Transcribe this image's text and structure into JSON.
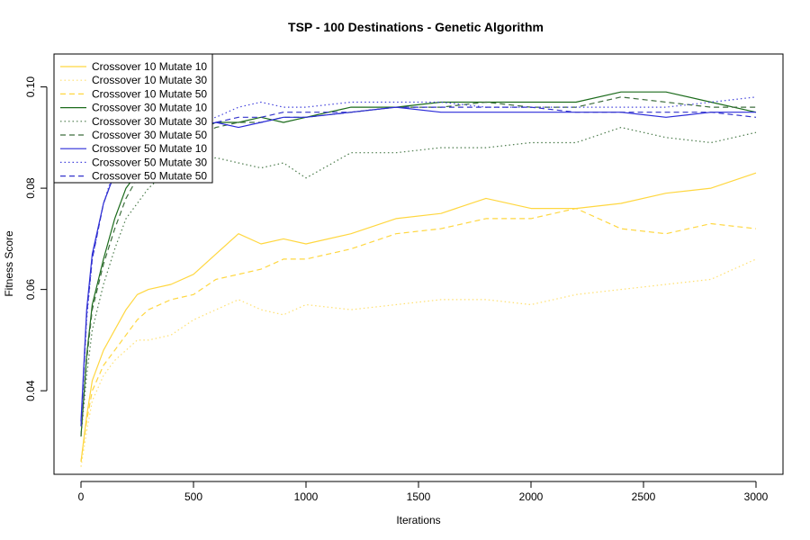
{
  "chart_data": {
    "type": "line",
    "title": "TSP - 100 Destinations  - Genetic Algorithm",
    "xlabel": "Iterations",
    "ylabel": "Fitness Score",
    "xlim": [
      -120,
      3120
    ],
    "ylim": [
      0.0235,
      0.1065
    ],
    "xticks": [
      0,
      500,
      1000,
      1500,
      2000,
      2500,
      3000
    ],
    "xtick_labels": [
      "0",
      "500",
      "1000",
      "1500",
      "2000",
      "2500",
      "3000"
    ],
    "yticks": [
      0.04,
      0.06,
      0.08,
      0.1
    ],
    "ytick_labels": [
      "0.04",
      "0.06",
      "0.08",
      "0.10"
    ],
    "grid": false,
    "legend_position": "top-left",
    "x": [
      0,
      25,
      50,
      100,
      150,
      200,
      250,
      300,
      400,
      500,
      600,
      700,
      800,
      900,
      1000,
      1200,
      1400,
      1600,
      1800,
      2000,
      2200,
      2400,
      2600,
      2800,
      3000
    ],
    "series": [
      {
        "name": "Crossover 10 Mutate 10",
        "color": "#FFD740",
        "dash": "solid",
        "values": [
          0.026,
          0.035,
          0.042,
          0.048,
          0.052,
          0.056,
          0.059,
          0.06,
          0.061,
          0.063,
          0.067,
          0.071,
          0.069,
          0.07,
          0.069,
          0.071,
          0.074,
          0.075,
          0.078,
          0.076,
          0.076,
          0.077,
          0.079,
          0.08,
          0.083
        ]
      },
      {
        "name": "Crossover 10 Mutate 30",
        "color": "#FFE070",
        "dash": "dotted",
        "values": [
          0.025,
          0.032,
          0.038,
          0.043,
          0.046,
          0.048,
          0.05,
          0.05,
          0.051,
          0.054,
          0.056,
          0.058,
          0.056,
          0.055,
          0.057,
          0.056,
          0.057,
          0.058,
          0.058,
          0.057,
          0.059,
          0.06,
          0.061,
          0.062,
          0.066
        ]
      },
      {
        "name": "Crossover 10 Mutate 50",
        "color": "#FFD740",
        "dash": "dashed",
        "values": [
          0.026,
          0.034,
          0.04,
          0.045,
          0.048,
          0.051,
          0.054,
          0.056,
          0.058,
          0.059,
          0.062,
          0.063,
          0.064,
          0.066,
          0.066,
          0.068,
          0.071,
          0.072,
          0.074,
          0.074,
          0.076,
          0.072,
          0.071,
          0.073,
          0.072
        ]
      },
      {
        "name": "Crossover 30 Mutate 10",
        "color": "#1B6B1B",
        "dash": "solid",
        "values": [
          0.031,
          0.047,
          0.057,
          0.066,
          0.074,
          0.08,
          0.083,
          0.086,
          0.089,
          0.091,
          0.093,
          0.093,
          0.094,
          0.093,
          0.094,
          0.096,
          0.096,
          0.097,
          0.097,
          0.097,
          0.097,
          0.099,
          0.099,
          0.097,
          0.095
        ]
      },
      {
        "name": "Crossover 30 Mutate 30",
        "color": "#4A7A4A",
        "dash": "dotted",
        "values": [
          0.031,
          0.043,
          0.052,
          0.061,
          0.068,
          0.074,
          0.077,
          0.08,
          0.084,
          0.085,
          0.086,
          0.085,
          0.084,
          0.085,
          0.082,
          0.087,
          0.087,
          0.088,
          0.088,
          0.089,
          0.089,
          0.092,
          0.09,
          0.089,
          0.091
        ]
      },
      {
        "name": "Crossover 30 Mutate 50",
        "color": "#3D6E3D",
        "dash": "dashed",
        "values": [
          0.031,
          0.046,
          0.056,
          0.065,
          0.072,
          0.078,
          0.082,
          0.085,
          0.088,
          0.09,
          0.092,
          0.093,
          0.093,
          0.094,
          0.094,
          0.095,
          0.096,
          0.096,
          0.097,
          0.096,
          0.096,
          0.098,
          0.097,
          0.096,
          0.096
        ]
      },
      {
        "name": "Crossover 50 Mutate 10",
        "color": "#2B2BD9",
        "dash": "solid",
        "values": [
          0.034,
          0.056,
          0.067,
          0.077,
          0.083,
          0.087,
          0.089,
          0.091,
          0.092,
          0.092,
          0.093,
          0.092,
          0.093,
          0.094,
          0.094,
          0.095,
          0.096,
          0.095,
          0.095,
          0.095,
          0.095,
          0.095,
          0.094,
          0.095,
          0.095
        ]
      },
      {
        "name": "Crossover 50 Mutate 30",
        "color": "#4444DD",
        "dash": "dotted",
        "values": [
          0.033,
          0.054,
          0.066,
          0.077,
          0.084,
          0.088,
          0.09,
          0.091,
          0.093,
          0.093,
          0.094,
          0.096,
          0.097,
          0.096,
          0.096,
          0.097,
          0.097,
          0.097,
          0.096,
          0.096,
          0.096,
          0.096,
          0.096,
          0.097,
          0.098
        ]
      },
      {
        "name": "Crossover 50 Mutate 50",
        "color": "#3333CC",
        "dash": "dashed",
        "values": [
          0.033,
          0.055,
          0.066,
          0.077,
          0.083,
          0.087,
          0.089,
          0.09,
          0.092,
          0.093,
          0.093,
          0.094,
          0.094,
          0.095,
          0.095,
          0.095,
          0.096,
          0.096,
          0.096,
          0.096,
          0.095,
          0.095,
          0.095,
          0.095,
          0.094
        ]
      }
    ]
  }
}
